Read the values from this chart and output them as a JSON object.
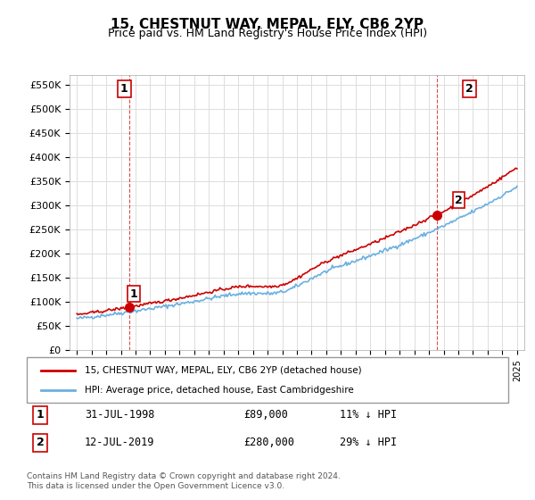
{
  "title": "15, CHESTNUT WAY, MEPAL, ELY, CB6 2YP",
  "subtitle": "Price paid vs. HM Land Registry's House Price Index (HPI)",
  "ylabel": "",
  "ylim": [
    0,
    570000
  ],
  "yticks": [
    0,
    50000,
    100000,
    150000,
    200000,
    250000,
    300000,
    350000,
    400000,
    450000,
    500000,
    550000
  ],
  "ytick_labels": [
    "£0",
    "£50K",
    "£100K",
    "£150K",
    "£200K",
    "£250K",
    "£300K",
    "£350K",
    "£400K",
    "£450K",
    "£500K",
    "£550K"
  ],
  "hpi_color": "#6ab0e0",
  "price_color": "#cc0000",
  "marker_color_1": "#cc0000",
  "marker_color_2": "#cc0000",
  "purchase1_date": 1998.58,
  "purchase1_price": 89000,
  "purchase1_label": "1",
  "purchase2_date": 2019.53,
  "purchase2_price": 280000,
  "purchase2_label": "2",
  "legend_line1": "15, CHESTNUT WAY, MEPAL, ELY, CB6 2YP (detached house)",
  "legend_line2": "HPI: Average price, detached house, East Cambridgeshire",
  "table_row1": [
    "1",
    "31-JUL-1998",
    "£89,000",
    "11% ↓ HPI"
  ],
  "table_row2": [
    "2",
    "12-JUL-2019",
    "£280,000",
    "29% ↓ HPI"
  ],
  "footnote": "Contains HM Land Registry data © Crown copyright and database right 2024.\nThis data is licensed under the Open Government Licence v3.0.",
  "background_color": "#ffffff",
  "grid_color": "#dddddd"
}
